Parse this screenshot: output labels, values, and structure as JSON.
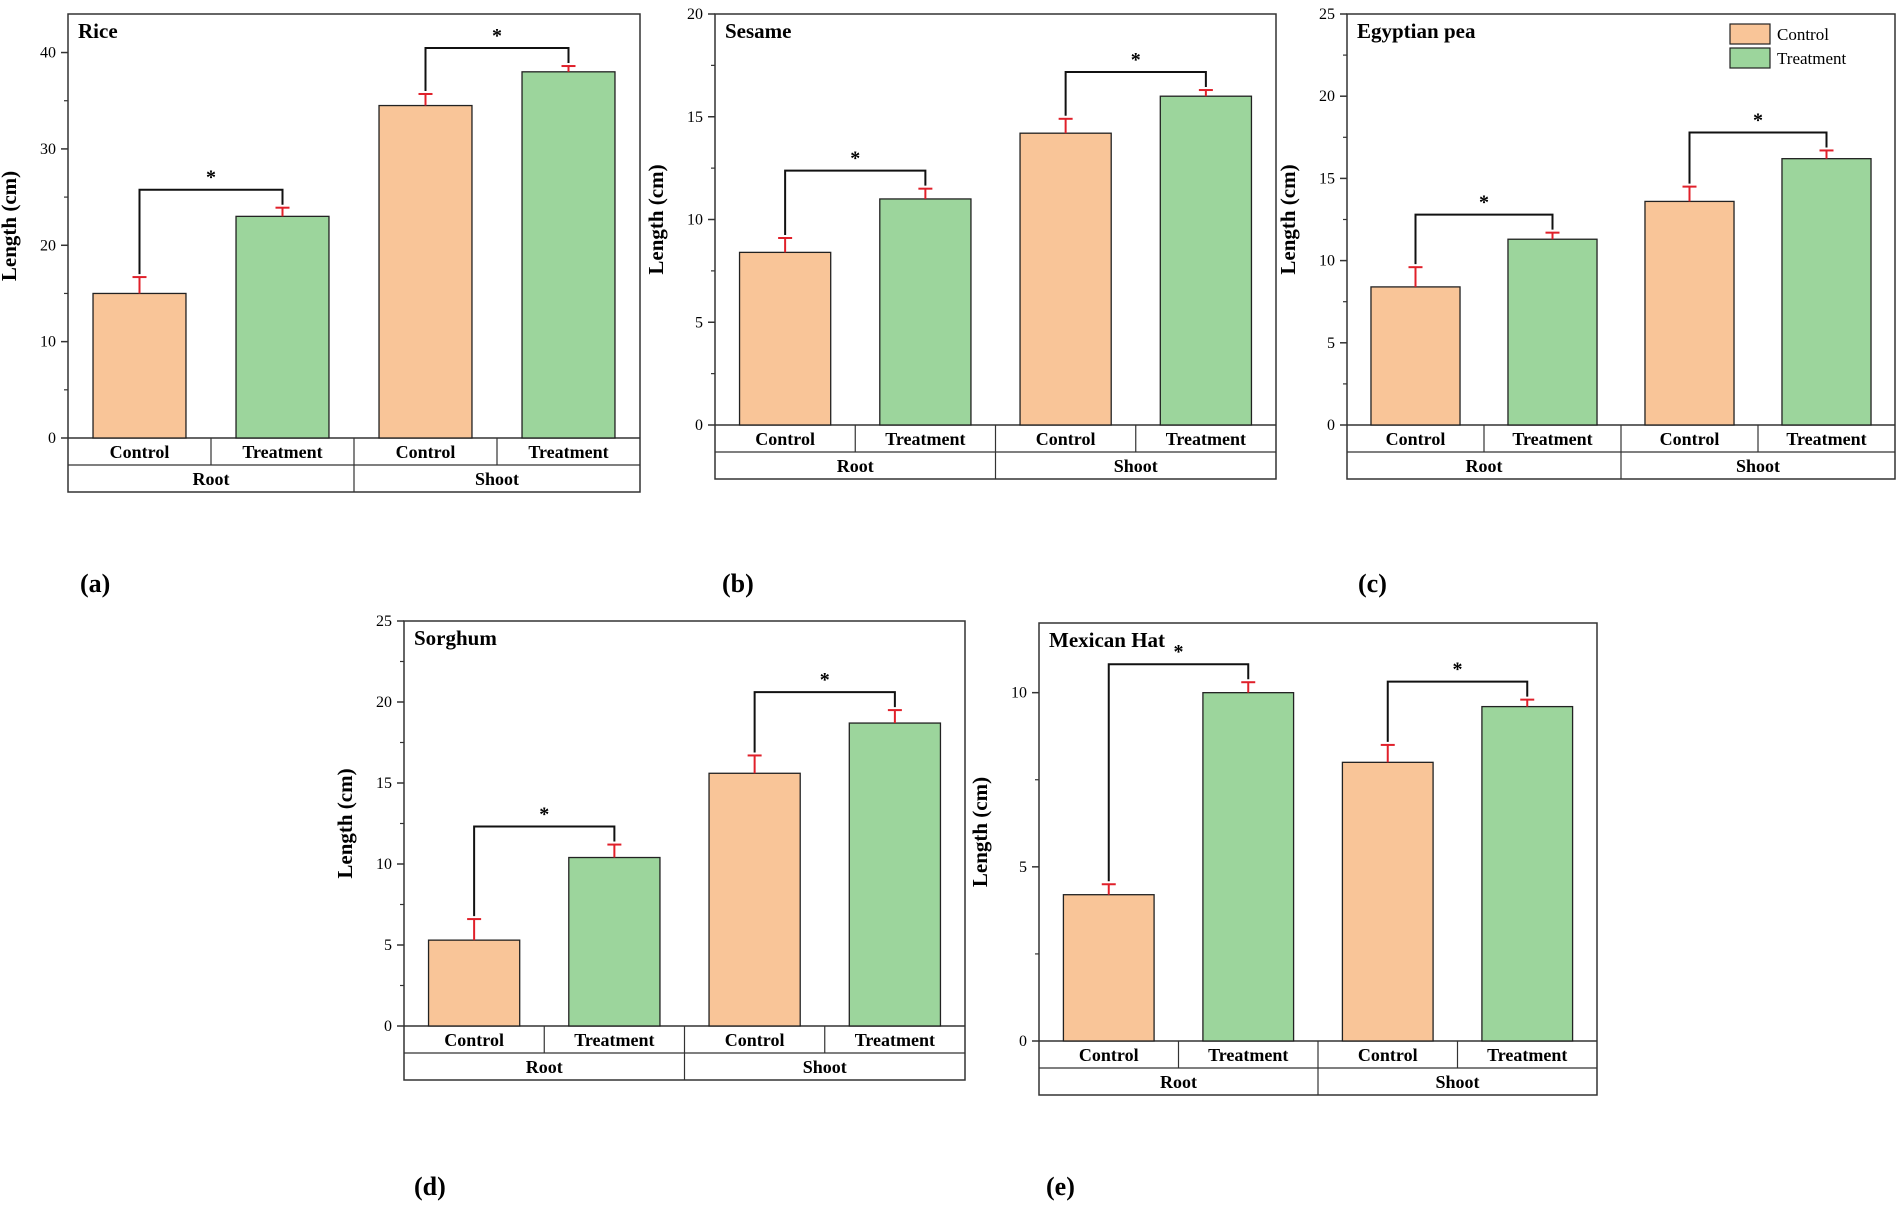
{
  "colors": {
    "control": "#f9c598",
    "treatment": "#9cd59c",
    "error_bar": "#e0202a",
    "frame": "#333333"
  },
  "legend": [
    {
      "name": "Control",
      "color": "#f9c598"
    },
    {
      "name": "Treatment",
      "color": "#9cd59c"
    }
  ],
  "chart_data": [
    {
      "type": "bar",
      "panel": "(a)",
      "title": "Rice",
      "ylabel": "Length (cm)",
      "ylim": [
        0,
        44
      ],
      "yticks": [
        0,
        10,
        20,
        30,
        40
      ],
      "groups": [
        "Root",
        "Shoot"
      ],
      "categories": [
        "Control",
        "Treatment",
        "Control",
        "Treatment"
      ],
      "series": [
        {
          "name": "Control",
          "group_values": [
            15.0,
            34.5
          ],
          "group_errors": [
            1.7,
            1.2
          ]
        },
        {
          "name": "Treatment",
          "group_values": [
            23.0,
            38.0
          ],
          "group_errors": [
            0.9,
            0.6
          ]
        }
      ],
      "significance": [
        "*",
        "*"
      ]
    },
    {
      "type": "bar",
      "panel": "(b)",
      "title": "Sesame",
      "ylabel": "Length (cm)",
      "ylim": [
        0,
        20
      ],
      "yticks": [
        0,
        5,
        10,
        15,
        20
      ],
      "groups": [
        "Root",
        "Shoot"
      ],
      "categories": [
        "Control",
        "Treatment",
        "Control",
        "Treatment"
      ],
      "series": [
        {
          "name": "Control",
          "group_values": [
            8.4,
            14.2
          ],
          "group_errors": [
            0.7,
            0.7
          ]
        },
        {
          "name": "Treatment",
          "group_values": [
            11.0,
            16.0
          ],
          "group_errors": [
            0.5,
            0.3
          ]
        }
      ],
      "significance": [
        "*",
        "*"
      ]
    },
    {
      "type": "bar",
      "panel": "(c)",
      "title": "Egyptian pea",
      "ylabel": "Length (cm)",
      "ylim": [
        0,
        25
      ],
      "yticks": [
        0,
        5,
        10,
        15,
        20,
        25
      ],
      "groups": [
        "Root",
        "Shoot"
      ],
      "categories": [
        "Control",
        "Treatment",
        "Control",
        "Treatment"
      ],
      "series": [
        {
          "name": "Control",
          "group_values": [
            8.4,
            13.6
          ],
          "group_errors": [
            1.2,
            0.9
          ]
        },
        {
          "name": "Treatment",
          "group_values": [
            11.3,
            16.2
          ],
          "group_errors": [
            0.4,
            0.5
          ]
        }
      ],
      "significance": [
        "*",
        "*"
      ],
      "legend": "top-right"
    },
    {
      "type": "bar",
      "panel": "(d)",
      "title": "Sorghum",
      "ylabel": "Length (cm)",
      "ylim": [
        0,
        25
      ],
      "yticks": [
        0,
        5,
        10,
        15,
        20,
        25
      ],
      "groups": [
        "Root",
        "Shoot"
      ],
      "categories": [
        "Control",
        "Treatment",
        "Control",
        "Treatment"
      ],
      "series": [
        {
          "name": "Control",
          "group_values": [
            5.3,
            15.6
          ],
          "group_errors": [
            1.3,
            1.1
          ]
        },
        {
          "name": "Treatment",
          "group_values": [
            10.4,
            18.7
          ],
          "group_errors": [
            0.8,
            0.8
          ]
        }
      ],
      "significance": [
        "*",
        "*"
      ]
    },
    {
      "type": "bar",
      "panel": "(e)",
      "title": "Mexican Hat",
      "ylabel": "Length (cm)",
      "ylim": [
        0,
        12
      ],
      "yticks": [
        0,
        5,
        10
      ],
      "groups": [
        "Root",
        "Shoot"
      ],
      "categories": [
        "Control",
        "Treatment",
        "Control",
        "Treatment"
      ],
      "series": [
        {
          "name": "Control",
          "group_values": [
            4.2,
            8.0
          ],
          "group_errors": [
            0.3,
            0.5
          ]
        },
        {
          "name": "Treatment",
          "group_values": [
            10.0,
            9.6
          ],
          "group_errors": [
            0.3,
            0.2
          ]
        }
      ],
      "significance": [
        "*",
        "*"
      ]
    }
  ]
}
